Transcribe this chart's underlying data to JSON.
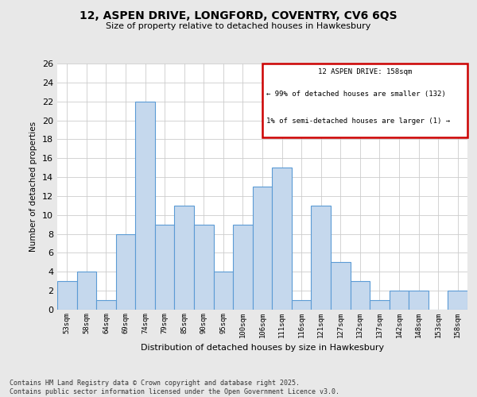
{
  "title": "12, ASPEN DRIVE, LONGFORD, COVENTRY, CV6 6QS",
  "subtitle": "Size of property relative to detached houses in Hawkesbury",
  "xlabel": "Distribution of detached houses by size in Hawkesbury",
  "ylabel": "Number of detached properties",
  "footer_line1": "Contains HM Land Registry data © Crown copyright and database right 2025.",
  "footer_line2": "Contains public sector information licensed under the Open Government Licence v3.0.",
  "categories": [
    "53sqm",
    "58sqm",
    "64sqm",
    "69sqm",
    "74sqm",
    "79sqm",
    "85sqm",
    "90sqm",
    "95sqm",
    "100sqm",
    "106sqm",
    "111sqm",
    "116sqm",
    "121sqm",
    "127sqm",
    "132sqm",
    "137sqm",
    "142sqm",
    "148sqm",
    "153sqm",
    "158sqm"
  ],
  "values": [
    3,
    4,
    1,
    8,
    22,
    9,
    11,
    9,
    4,
    9,
    13,
    15,
    1,
    11,
    5,
    3,
    1,
    2,
    2,
    0,
    2
  ],
  "bar_color": "#c5d8ed",
  "bar_edge_color": "#5b9bd5",
  "background_color": "#e8e8e8",
  "plot_background_color": "#ffffff",
  "grid_color": "#cccccc",
  "legend_title": "12 ASPEN DRIVE: 158sqm",
  "legend_line1": "← 99% of detached houses are smaller (132)",
  "legend_line2": "1% of semi-detached houses are larger (1) →",
  "legend_box_color": "#cc0000",
  "ylim": [
    0,
    26
  ],
  "yticks": [
    0,
    2,
    4,
    6,
    8,
    10,
    12,
    14,
    16,
    18,
    20,
    22,
    24,
    26
  ]
}
